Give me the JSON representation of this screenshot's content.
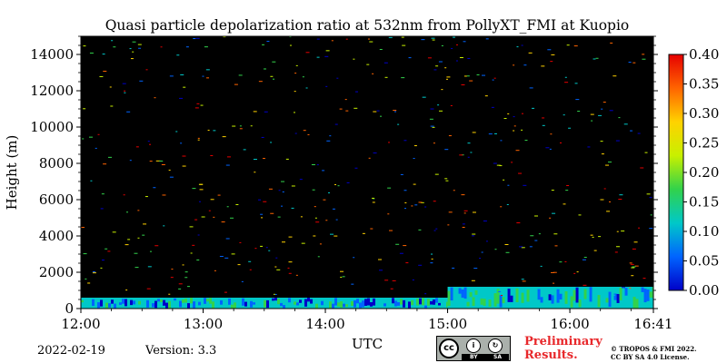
{
  "chart_data": {
    "type": "heatmap",
    "title": "Quasi particle depolarization ratio at 532nm from PollyXT_FMI at Kuopio",
    "xlabel": "UTC",
    "ylabel": "Height (m)",
    "x_range": [
      "12:00",
      "16:41"
    ],
    "x_ticks": [
      "12:00",
      "13:00",
      "14:00",
      "15:00",
      "16:00",
      "16:41"
    ],
    "ylim": [
      0,
      15000
    ],
    "y_ticks": [
      0,
      2000,
      4000,
      6000,
      8000,
      10000,
      12000,
      14000
    ],
    "colorbar": {
      "range": [
        0.0,
        0.4
      ],
      "ticks": [
        "0.00",
        "0.05",
        "0.10",
        "0.15",
        "0.20",
        "0.25",
        "0.30",
        "0.35",
        "0.40"
      ],
      "colormap": "jet",
      "colors": [
        "#0000c8",
        "#0064ff",
        "#00c8c8",
        "#32d24b",
        "#c8f000",
        "#ffd200",
        "#ff6400",
        "#e60000"
      ]
    },
    "background_color": "#000000",
    "layers": [
      {
        "from_utc": "12:00",
        "to_utc": "15:00",
        "height_bottom": 0,
        "height_top": 600,
        "typical_value": 0.1
      },
      {
        "from_utc": "15:00",
        "to_utc": "16:41",
        "height_bottom": 0,
        "height_top": 1200,
        "typical_value": 0.12
      }
    ]
  },
  "footer": {
    "date": "2022-02-19",
    "version": "Version: 3.3",
    "license_badge": {
      "icon": "cc-by-sa-icon",
      "by": "BY",
      "sa": "SA",
      "cc": "cc"
    },
    "preliminary": [
      "Preliminary",
      "Results."
    ],
    "copyright": [
      "© TROPOS & FMI 2022.",
      "CC BY SA 4.0 License."
    ]
  }
}
